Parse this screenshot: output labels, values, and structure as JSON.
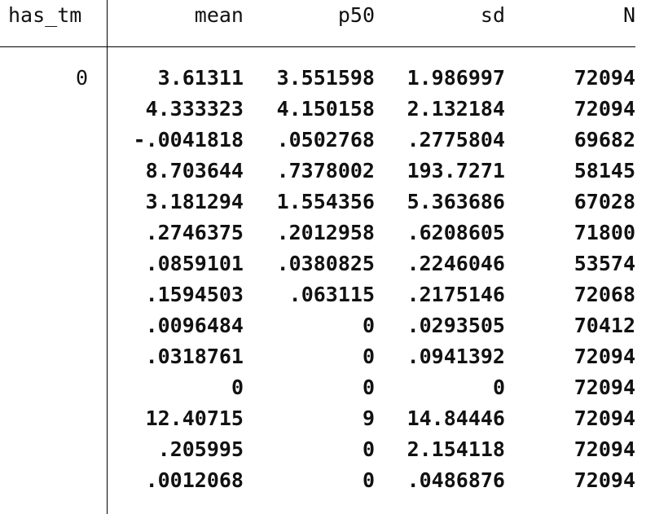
{
  "table": {
    "headers": {
      "group": "has_tm",
      "mean": "mean",
      "p50": "p50",
      "sd": "sd",
      "n": "N"
    },
    "group_value": "0",
    "rows": [
      {
        "mean": "3.61311",
        "p50": "3.551598",
        "sd": "1.986997",
        "n": "72094"
      },
      {
        "mean": "4.333323",
        "p50": "4.150158",
        "sd": "2.132184",
        "n": "72094"
      },
      {
        "mean": "-.0041818",
        "p50": ".0502768",
        "sd": ".2775804",
        "n": "69682"
      },
      {
        "mean": "8.703644",
        "p50": ".7378002",
        "sd": "193.7271",
        "n": "58145"
      },
      {
        "mean": "3.181294",
        "p50": "1.554356",
        "sd": "5.363686",
        "n": "67028"
      },
      {
        "mean": ".2746375",
        "p50": ".2012958",
        "sd": ".6208605",
        "n": "71800"
      },
      {
        "mean": ".0859101",
        "p50": ".0380825",
        "sd": ".2246046",
        "n": "53574"
      },
      {
        "mean": ".1594503",
        "p50": ".063115",
        "sd": ".2175146",
        "n": "72068"
      },
      {
        "mean": ".0096484",
        "p50": "0",
        "sd": ".0293505",
        "n": "70412"
      },
      {
        "mean": ".0318761",
        "p50": "0",
        "sd": ".0941392",
        "n": "72094"
      },
      {
        "mean": "0",
        "p50": "0",
        "sd": "0",
        "n": "72094"
      },
      {
        "mean": "12.40715",
        "p50": "9",
        "sd": "14.84446",
        "n": "72094"
      },
      {
        "mean": ".205995",
        "p50": "0",
        "sd": "2.154118",
        "n": "72094"
      },
      {
        "mean": ".0012068",
        "p50": "0",
        "sd": ".0486876",
        "n": "72094"
      }
    ]
  }
}
